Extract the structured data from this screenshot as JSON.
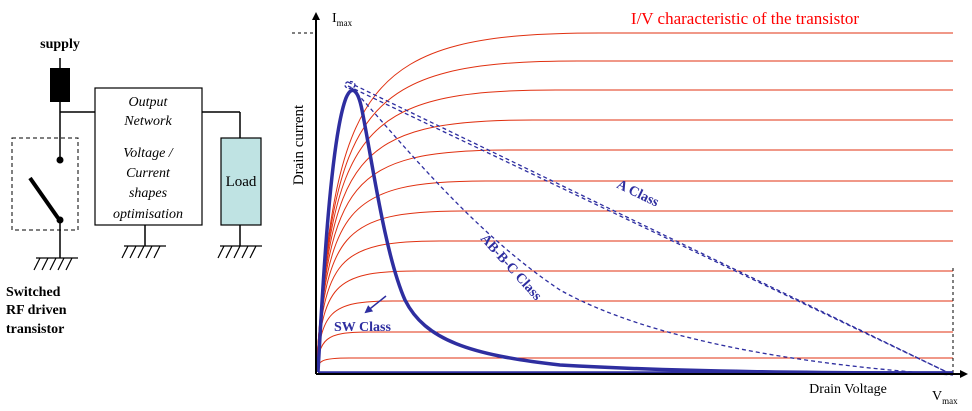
{
  "circuit": {
    "supply_label": "supply",
    "network_line1": "Output",
    "network_line2": "Network",
    "network_line3": "Voltage /",
    "network_line4": "Current",
    "network_line5": "shapes",
    "network_line6": "optimisation",
    "load_label": "Load",
    "switch_caption_line1": "Switched",
    "switch_caption_line2": "RF driven",
    "switch_caption_line3": "transistor",
    "load_fill_color": "#bfe3e3"
  },
  "chart": {
    "title": "I/V characteristic of the transistor",
    "y_axis_label": "Drain current",
    "y_max_main": "I",
    "y_max_sub": "max",
    "x_axis_label": "Drain Voltage",
    "x_max_main": "V",
    "x_max_sub": "max",
    "label_a_class": "A Class",
    "label_abc_class": "AB-B-C Class",
    "label_sw_class": "SW Class",
    "curve_color": "#e03010",
    "class_color": "#2e2ea0",
    "title_color": "#ff0000"
  }
}
